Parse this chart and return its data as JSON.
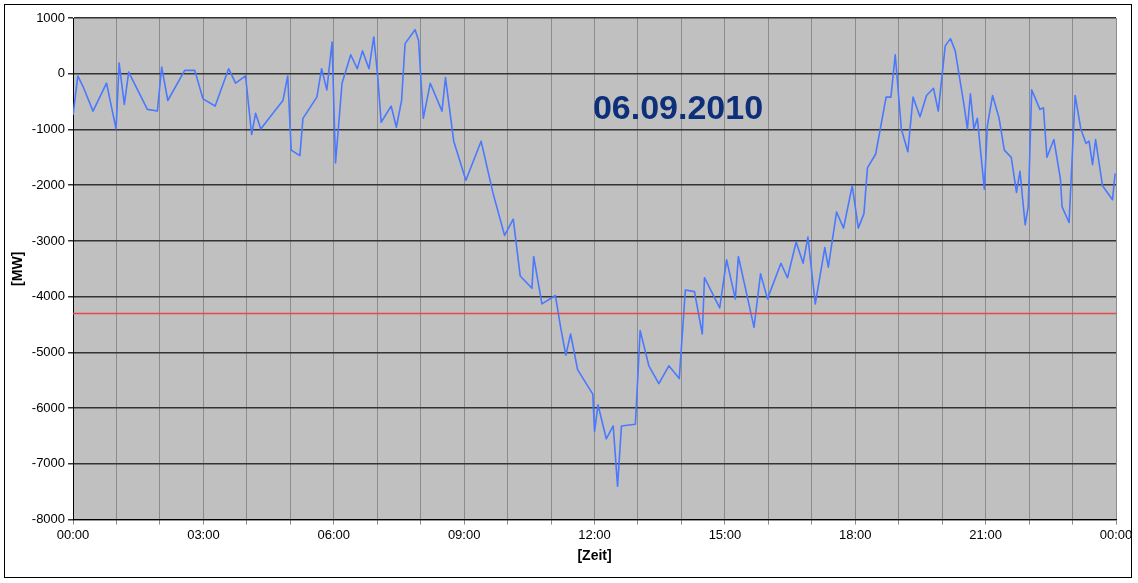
{
  "chart_data": {
    "type": "line",
    "title": "06.09.2010",
    "xlabel": "[Zeit]",
    "ylabel": "[MW]",
    "series": [
      {
        "color": "#4a78ff",
        "x": [
          0,
          0.11,
          0.23,
          0.46,
          0.77,
          0.99,
          1.06,
          1.18,
          1.28,
          1.71,
          1.94,
          2.04,
          2.18,
          2.57,
          2.8,
          2.99,
          3.27,
          3.58,
          3.74,
          3.97,
          4.11,
          4.2,
          4.32,
          4.51,
          4.83,
          4.94,
          5.02,
          5.22,
          5.29,
          5.61,
          5.72,
          5.84,
          5.96,
          6.04,
          6.19,
          6.39,
          6.54,
          6.66,
          6.81,
          6.92,
          7.01,
          7.09,
          7.32,
          7.44,
          7.56,
          7.64,
          7.87,
          7.95,
          8.06,
          8.22,
          8.49,
          8.57,
          8.76,
          9.04,
          9.39,
          9.66,
          9.93,
          10.13,
          10.29,
          10.56,
          10.6,
          10.79,
          11.1,
          11.22,
          11.34,
          11.45,
          11.61,
          11.96,
          12.0,
          12.08,
          12.27,
          12.43,
          12.53,
          12.62,
          12.94,
          13.05,
          13.25,
          13.48,
          13.71,
          13.95,
          14.09,
          14.3,
          14.48,
          14.53,
          14.88,
          15.04,
          15.24,
          15.31,
          15.51,
          15.67,
          15.82,
          15.98,
          16.29,
          16.44,
          16.64,
          16.8,
          16.91,
          17.08,
          17.3,
          17.38,
          17.57,
          17.73,
          17.93,
          18.07,
          18.2,
          18.28,
          18.47,
          18.71,
          18.82,
          18.92,
          19.06,
          19.21,
          19.33,
          19.49,
          19.64,
          19.8,
          19.91,
          20.07,
          20.19,
          20.3,
          20.5,
          20.58,
          20.65,
          20.73,
          20.81,
          20.97,
          21.04,
          21.16,
          21.31,
          21.43,
          21.59,
          21.71,
          21.79,
          21.91,
          21.98,
          22.06,
          22.25,
          22.33,
          22.41,
          22.57,
          22.72,
          22.76,
          22.92,
          23.06,
          23.19,
          23.31,
          23.38,
          23.46,
          23.53,
          23.69,
          23.92,
          23.98
        ],
        "values": [
          -740,
          -40,
          -230,
          -670,
          -170,
          -990,
          190,
          -550,
          30,
          -640,
          -670,
          120,
          -480,
          60,
          60,
          -450,
          -580,
          90,
          -170,
          -40,
          -1090,
          -710,
          -990,
          -800,
          -480,
          -40,
          -1370,
          -1470,
          -800,
          -420,
          90,
          -290,
          570,
          -1600,
          -170,
          340,
          90,
          410,
          90,
          660,
          -40,
          -870,
          -580,
          -960,
          -480,
          540,
          790,
          600,
          -800,
          -170,
          -670,
          -70,
          -1210,
          -1910,
          -1210,
          -2130,
          -2900,
          -2610,
          -3630,
          -3850,
          -3280,
          -4130,
          -3980,
          -4550,
          -5050,
          -4670,
          -5310,
          -5750,
          -6420,
          -5940,
          -6550,
          -6320,
          -7400,
          -6320,
          -6290,
          -4610,
          -5240,
          -5560,
          -5240,
          -5470,
          -3880,
          -3910,
          -4670,
          -3660,
          -4200,
          -3340,
          -4040,
          -3280,
          -3980,
          -4550,
          -3590,
          -4040,
          -3400,
          -3660,
          -3020,
          -3400,
          -2930,
          -4130,
          -3120,
          -3470,
          -2480,
          -2770,
          -2010,
          -2770,
          -2510,
          -1690,
          -1440,
          -420,
          -420,
          340,
          -990,
          -1400,
          -420,
          -770,
          -390,
          -260,
          -670,
          500,
          630,
          410,
          -550,
          -990,
          -360,
          -990,
          -800,
          -2070,
          -930,
          -390,
          -800,
          -1370,
          -1500,
          -2130,
          -1750,
          -2710,
          -2390,
          -290,
          -640,
          -610,
          -1500,
          -1180,
          -1880,
          -2390,
          -2670,
          -390,
          -990,
          -1250,
          -1210,
          -1630,
          -1180,
          -2010,
          -2260,
          -1790
        ]
      }
    ],
    "xlim": [
      0,
      24
    ],
    "xticks": [
      {
        "value": 0,
        "label": "00:00"
      },
      {
        "value": 1,
        "label": null
      },
      {
        "value": 2,
        "label": null
      },
      {
        "value": 3,
        "label": "03:00"
      },
      {
        "value": 4,
        "label": null
      },
      {
        "value": 5,
        "label": null
      },
      {
        "value": 6,
        "label": "06:00"
      },
      {
        "value": 7,
        "label": null
      },
      {
        "value": 8,
        "label": null
      },
      {
        "value": 9,
        "label": "09:00"
      },
      {
        "value": 10,
        "label": null
      },
      {
        "value": 11,
        "label": null
      },
      {
        "value": 12,
        "label": "12:00"
      },
      {
        "value": 13,
        "label": null
      },
      {
        "value": 14,
        "label": null
      },
      {
        "value": 15,
        "label": "15:00"
      },
      {
        "value": 16,
        "label": null
      },
      {
        "value": 17,
        "label": null
      },
      {
        "value": 18,
        "label": "18:00"
      },
      {
        "value": 19,
        "label": null
      },
      {
        "value": 20,
        "label": null
      },
      {
        "value": 21,
        "label": "21:00"
      },
      {
        "value": 22,
        "label": null
      },
      {
        "value": 23,
        "label": null
      },
      {
        "value": 24,
        "label": "00:00"
      }
    ],
    "ylim": [
      -8000,
      1000
    ],
    "yticks": [
      -8000,
      -7000,
      -6000,
      -5000,
      -4000,
      -3000,
      -2000,
      -1000,
      0,
      1000
    ],
    "ref_lines": [
      {
        "axis": "y",
        "value": -4300,
        "color": "#e8474a"
      }
    ],
    "grid": true,
    "legend": false,
    "marker": "none",
    "line_style": "solid"
  }
}
